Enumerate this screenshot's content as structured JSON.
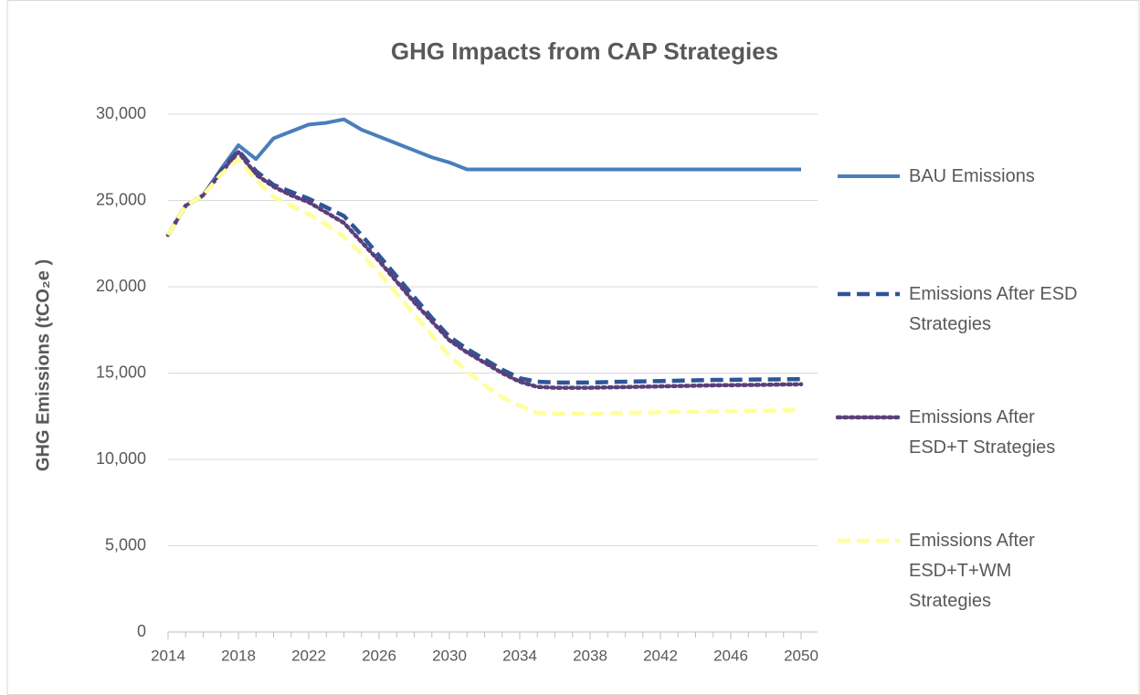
{
  "chart_data": {
    "type": "line",
    "title": "GHG Impacts from CAP Strategies",
    "y_label": "GHG Emissions (tCO₂e )",
    "x": [
      2014,
      2015,
      2016,
      2017,
      2018,
      2019,
      2020,
      2021,
      2022,
      2023,
      2024,
      2025,
      2026,
      2027,
      2028,
      2029,
      2030,
      2031,
      2032,
      2033,
      2034,
      2035,
      2036,
      2037,
      2038,
      2039,
      2040,
      2041,
      2042,
      2043,
      2044,
      2045,
      2046,
      2047,
      2048,
      2049,
      2050
    ],
    "xlim": [
      2014,
      2050
    ],
    "xticks": [
      2014,
      2018,
      2022,
      2026,
      2030,
      2034,
      2038,
      2042,
      2046,
      2050
    ],
    "ylim": [
      0,
      30000
    ],
    "yticks": [
      {
        "value": 0,
        "label": "0"
      },
      {
        "value": 5000,
        "label": "5,000"
      },
      {
        "value": 10000,
        "label": "10,000"
      },
      {
        "value": 15000,
        "label": "15,000"
      },
      {
        "value": 20000,
        "label": "20,000"
      },
      {
        "value": 25000,
        "label": "25,000"
      },
      {
        "value": 30000,
        "label": "30,000"
      }
    ],
    "grid": true,
    "legend": "right",
    "series": [
      {
        "name": "BAU Emissions",
        "color": "#4a7ebb",
        "dash": "solid",
        "values": [
          23000,
          24700,
          25300,
          26800,
          28200,
          27400,
          28600,
          29000,
          29400,
          29500,
          29700,
          29100,
          28700,
          28300,
          27900,
          27500,
          27200,
          26800,
          26800,
          26800,
          26800,
          26800,
          26800,
          26800,
          26800,
          26800,
          26800,
          26800,
          26800,
          26800,
          26800,
          26800,
          26800,
          26800,
          26800,
          26800,
          26800
        ]
      },
      {
        "name": "Emissions After ESD Strategies",
        "color": "#2f5597",
        "dash": "dashed",
        "values": [
          23000,
          24700,
          25300,
          26700,
          27900,
          26700,
          25900,
          25500,
          25100,
          24600,
          24100,
          23000,
          21800,
          20600,
          19400,
          18200,
          17100,
          16400,
          15800,
          15200,
          14700,
          14500,
          14450,
          14450,
          14450,
          14480,
          14500,
          14520,
          14540,
          14560,
          14580,
          14600,
          14610,
          14620,
          14630,
          14640,
          14650
        ]
      },
      {
        "name": "Emissions After ESD+T Strategies",
        "color": "#5b3f7a",
        "dash": "dotted",
        "values": [
          23000,
          24700,
          25300,
          26600,
          27800,
          26500,
          25800,
          25300,
          24900,
          24300,
          23700,
          22600,
          21500,
          20300,
          19100,
          18000,
          16900,
          16200,
          15600,
          15000,
          14500,
          14200,
          14150,
          14150,
          14150,
          14170,
          14190,
          14210,
          14230,
          14250,
          14270,
          14290,
          14300,
          14310,
          14320,
          14340,
          14350
        ]
      },
      {
        "name": "Emissions After ESD+T+WM Strategies",
        "color": "#ffff99",
        "dash": "dashed",
        "values": [
          23000,
          24700,
          25300,
          26500,
          27400,
          26200,
          25200,
          24700,
          24200,
          23600,
          22900,
          21900,
          20800,
          19600,
          18400,
          17200,
          16000,
          15100,
          14300,
          13600,
          13100,
          12700,
          12650,
          12650,
          12650,
          12670,
          12690,
          12710,
          12730,
          12750,
          12770,
          12790,
          12800,
          12810,
          12820,
          12840,
          12850
        ]
      }
    ]
  }
}
